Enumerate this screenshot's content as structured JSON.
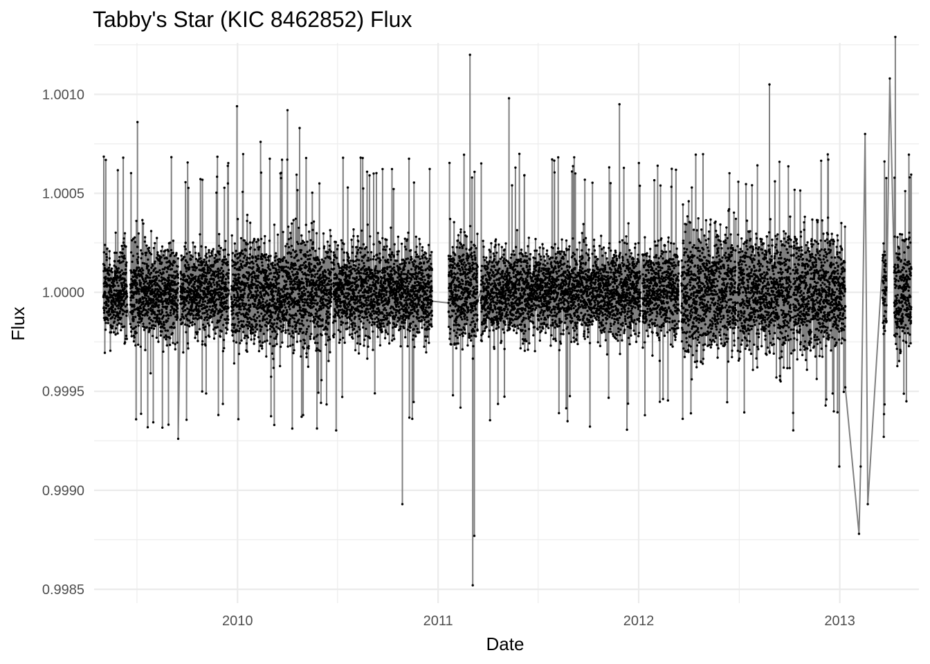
{
  "chart_data": {
    "type": "line",
    "title": "Tabby's Star (KIC 8462852) Flux",
    "xlabel": "Date",
    "ylabel": "Flux",
    "x_scale": "date",
    "xlim": [
      "2009-04-15",
      "2013-05-25"
    ],
    "ylim": [
      0.99843,
      1.00126
    ],
    "grid": true,
    "legend": "none",
    "line_color": "#7f7f7f",
    "point_color": "#000000",
    "x_ticks": [
      {
        "value": "2010-01-01",
        "label": "2010"
      },
      {
        "value": "2011-01-01",
        "label": "2011"
      },
      {
        "value": "2012-01-01",
        "label": "2012"
      },
      {
        "value": "2013-01-01",
        "label": "2013"
      }
    ],
    "y_ticks": [
      {
        "value": 0.9985,
        "label": "0.9985"
      },
      {
        "value": 0.999,
        "label": "0.9990"
      },
      {
        "value": 0.9995,
        "label": "0.9995"
      },
      {
        "value": 1.0,
        "label": "1.0000"
      },
      {
        "value": 1.0005,
        "label": "1.0005"
      },
      {
        "value": 1.001,
        "label": "1.0010"
      }
    ],
    "segments": [
      {
        "start": "2009-05-02",
        "end": "2009-06-14",
        "sd": 0.00011
      },
      {
        "start": "2009-06-20",
        "end": "2009-09-15",
        "sd": 0.00012
      },
      {
        "start": "2009-09-19",
        "end": "2009-12-16",
        "sd": 0.00011
      },
      {
        "start": "2009-12-21",
        "end": "2010-06-21",
        "sd": 0.00013
      },
      {
        "start": "2010-06-24",
        "end": "2010-12-21",
        "sd": 0.00011
      },
      {
        "start": "2011-01-20",
        "end": "2011-03-14",
        "sd": 0.00013
      },
      {
        "start": "2011-03-20",
        "end": "2012-01-04",
        "sd": 0.00011
      },
      {
        "start": "2012-01-08",
        "end": "2012-03-14",
        "sd": 0.00011
      },
      {
        "start": "2012-03-19",
        "end": "2012-06-26",
        "sd": 0.00015
      },
      {
        "start": "2012-06-29",
        "end": "2012-10-05",
        "sd": 0.00015
      },
      {
        "start": "2012-10-08",
        "end": "2013-01-11",
        "sd": 0.00015
      },
      {
        "start": "2013-03-20",
        "end": "2013-03-27",
        "sd": 0.00013
      },
      {
        "start": "2013-04-10",
        "end": "2013-05-11",
        "sd": 0.00013
      }
    ],
    "notable_points": [
      {
        "x": "2009-06-07",
        "y": 1.00068
      },
      {
        "x": "2009-07-03",
        "y": 1.00086
      },
      {
        "x": "2009-09-15",
        "y": 0.99926
      },
      {
        "x": "2009-12-31",
        "y": 1.00094
      },
      {
        "x": "2010-02-12",
        "y": 1.00076
      },
      {
        "x": "2010-04-02",
        "y": 1.00092
      },
      {
        "x": "2010-04-24",
        "y": 1.00083
      },
      {
        "x": "2010-10-28",
        "y": 0.99893
      },
      {
        "x": "2011-01-28",
        "y": 0.99948
      },
      {
        "x": "2011-02-28",
        "y": 1.0012
      },
      {
        "x": "2011-03-05",
        "y": 0.99852
      },
      {
        "x": "2011-03-08",
        "y": 0.99877
      },
      {
        "x": "2011-05-10",
        "y": 1.00098
      },
      {
        "x": "2011-11-27",
        "y": 1.00095
      },
      {
        "x": "2012-08-26",
        "y": 1.00105
      },
      {
        "x": "2012-12-31",
        "y": 0.99912
      },
      {
        "x": "2013-01-11",
        "y": 0.99952
      },
      {
        "x": "2013-02-05",
        "y": 0.99878
      },
      {
        "x": "2013-02-08",
        "y": 0.99912
      },
      {
        "x": "2013-02-16",
        "y": 1.0008
      },
      {
        "x": "2013-02-21",
        "y": 0.99893
      },
      {
        "x": "2013-03-22",
        "y": 0.99927
      },
      {
        "x": "2013-04-02",
        "y": 1.00108
      },
      {
        "x": "2013-04-12",
        "y": 1.00129
      }
    ]
  }
}
